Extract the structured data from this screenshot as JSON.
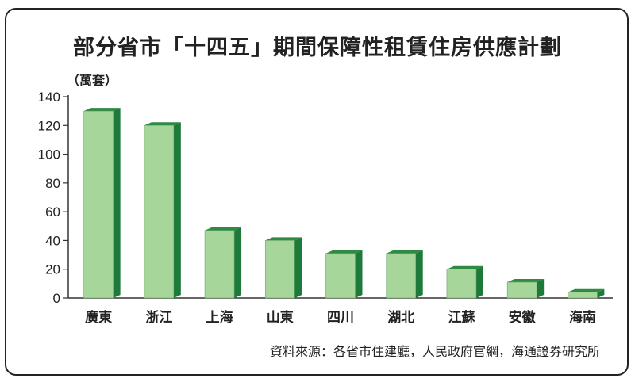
{
  "title": "部分省市「十四五」期間保障性租賃住房供應計劃",
  "unit_label": "（萬套）",
  "source": "資料來源：各省市住建廳，人民政府官網，海通證券研究所",
  "colors": {
    "bar_front": "#a6d69a",
    "bar_side": "#1d7a3a",
    "bar_top": "#2f8a44",
    "axis": "#333333"
  },
  "chart_data": {
    "type": "bar",
    "title": "部分省市「十四五」期間保障性租賃住房供應計劃",
    "ylabel": "萬套",
    "ylim": [
      0,
      140
    ],
    "yticks": [
      0,
      20,
      40,
      60,
      80,
      100,
      120,
      140
    ],
    "categories": [
      "廣東",
      "浙江",
      "上海",
      "山東",
      "四川",
      "湖北",
      "江蘇",
      "安徽",
      "海南"
    ],
    "values": [
      130,
      120,
      47,
      40,
      31,
      31,
      20,
      11,
      4
    ],
    "grid": false
  }
}
